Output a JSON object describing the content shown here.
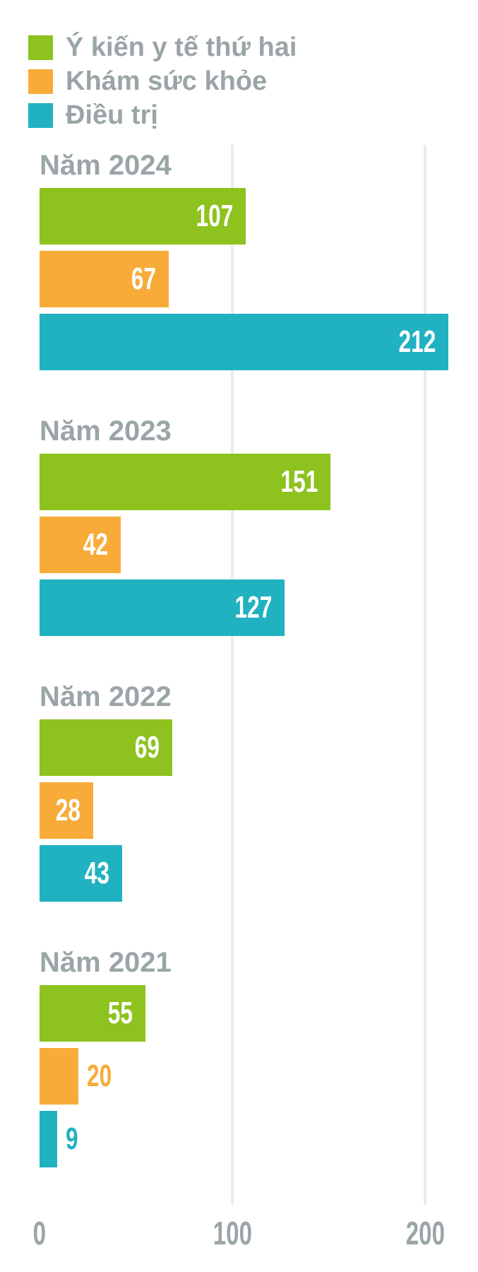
{
  "chart_data": {
    "type": "bar",
    "orientation": "horizontal",
    "title": "",
    "categories": [
      "Năm 2024",
      "Năm 2023",
      "Năm 2022",
      "Năm 2021"
    ],
    "series": [
      {
        "name": "Ý kiến y tế thứ hai",
        "color": "#8dc21f",
        "values": [
          107,
          151,
          69,
          55
        ]
      },
      {
        "name": "Khám sức khỏe",
        "color": "#f8ab39",
        "values": [
          67,
          42,
          28,
          20
        ]
      },
      {
        "name": "Điều trị",
        "color": "#20b2c1",
        "values": [
          212,
          127,
          43,
          9
        ]
      }
    ],
    "x_ticks": [
      "0",
      "100",
      "200"
    ],
    "x_tick_values": [
      0,
      100,
      200
    ],
    "xlim": [
      0,
      227
    ],
    "grid": "vertical-gridlines-at-100-and-200",
    "legend_position": "top-left",
    "value_label_style": "white-inside-bar-end; series-colored outside bar when bar too narrow"
  },
  "colors": {
    "background": "#ffffff",
    "text_gray": "#9aa5a7",
    "gridline": "#ebebeb",
    "value_label": "#ffffff"
  }
}
